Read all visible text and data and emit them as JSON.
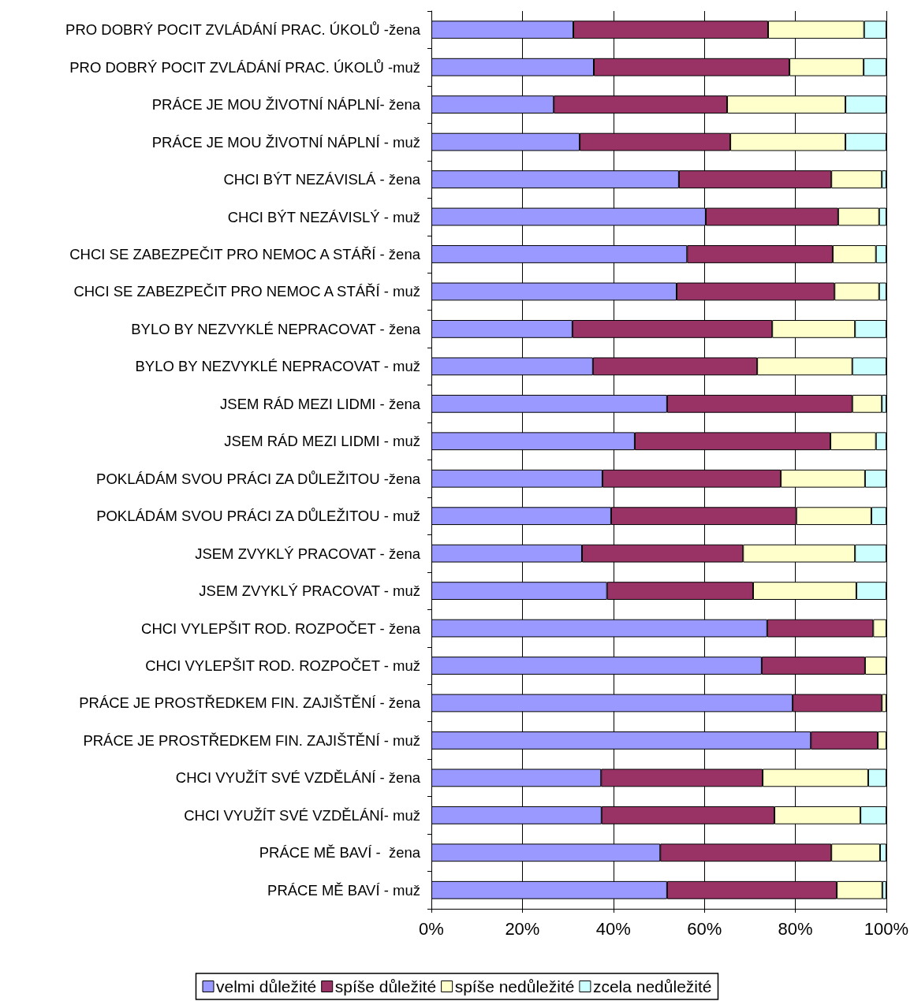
{
  "chart_data": {
    "type": "bar",
    "orientation": "horizontal",
    "stacked": true,
    "categories": [
      "PRO DOBRÝ POCIT ZVLÁDÁNÍ PRAC. ÚKOLŮ -žena",
      "PRO DOBRÝ POCIT ZVLÁDÁNÍ PRAC. ÚKOLŮ -muž",
      "PRÁCE JE MOU ŽIVOTNÍ NÁPLNÍ- žena",
      "PRÁCE JE MOU ŽIVOTNÍ NÁPLNÍ - muž",
      "CHCI BÝT NEZÁVISLÁ - žena",
      "CHCI BÝT NEZÁVISLÝ - muž",
      "CHCI SE ZABEZPEČIT PRO NEMOC A STÁŘÍ - žena",
      "CHCI SE ZABEZPEČIT PRO NEMOC A STÁŘÍ - muž",
      "BYLO BY NEZVYKLÉ NEPRACOVAT - žena",
      "BYLO BY NEZVYKLÉ NEPRACOVAT - muž",
      "JSEM RÁD MEZI LIDMI - žena",
      "JSEM RÁD MEZI LIDMI - muž",
      "POKLÁDÁM SVOU PRÁCI ZA DŮLEŽITOU -žena",
      "POKLÁDÁM SVOU PRÁCI ZA DŮLEŽITOU - muž",
      "JSEM ZVYKLÝ PRACOVAT - žena",
      "JSEM ZVYKLÝ PRACOVAT - muž",
      "CHCI VYLEPŠIT ROD. ROZPOČET - žena",
      "CHCI VYLEPŠIT ROD. ROZPOČET - muž",
      "PRÁCE JE PROSTŘEDKEM FIN. ZAJIŠTĚNÍ - žena",
      "PRÁCE JE PROSTŘEDKEM FIN. ZAJIŠTĚNÍ - muž",
      "CHCI VYUŽÍT SVÉ VZDĚLÁNÍ - žena",
      "CHCI VYUŽÍT SVÉ VZDĚLÁNÍ- muž",
      "PRÁCE MĚ BAVÍ -  žena",
      "PRÁCE MĚ BAVÍ - muž"
    ],
    "series": [
      {
        "name": "velmi důležité",
        "color": "#9999ff",
        "values": [
          31.2,
          35.7,
          26.9,
          32.6,
          54.4,
          60.3,
          56.2,
          53.9,
          31.0,
          35.5,
          51.8,
          44.7,
          37.6,
          39.5,
          33.1,
          38.6,
          73.8,
          72.6,
          79.4,
          83.4,
          37.3,
          37.4,
          50.3,
          51.8
        ]
      },
      {
        "name": "spíše důležité",
        "color": "#993366",
        "values": [
          42.8,
          43.0,
          38.1,
          33.1,
          33.5,
          29.1,
          32.0,
          34.7,
          43.9,
          36.1,
          40.7,
          43.0,
          39.2,
          40.7,
          35.4,
          32.1,
          23.3,
          22.7,
          19.6,
          14.7,
          35.5,
          38.0,
          37.6,
          37.3
        ]
      },
      {
        "name": "spíše nedůležité",
        "color": "#ffffcc",
        "values": [
          21.1,
          16.3,
          26.0,
          25.3,
          11.1,
          9.0,
          9.5,
          9.8,
          18.2,
          20.9,
          6.5,
          10.0,
          18.5,
          16.5,
          24.6,
          22.7,
          2.9,
          4.7,
          1.0,
          1.9,
          23.2,
          18.9,
          10.7,
          10.0
        ]
      },
      {
        "name": "zcela nedůležité",
        "color": "#ccffff",
        "values": [
          4.9,
          5.0,
          9.0,
          9.0,
          1.0,
          1.6,
          2.3,
          1.6,
          6.9,
          7.5,
          1.0,
          2.3,
          4.7,
          3.3,
          6.9,
          6.6,
          0,
          0,
          0,
          0,
          4.0,
          5.7,
          1.4,
          0.9
        ]
      }
    ],
    "xlim": [
      0,
      100
    ],
    "xticks": [
      {
        "value": 0,
        "label": "0%"
      },
      {
        "value": 20,
        "label": "20%"
      },
      {
        "value": 40,
        "label": "40%"
      },
      {
        "value": 60,
        "label": "60%"
      },
      {
        "value": 80,
        "label": "80%"
      },
      {
        "value": 100,
        "label": "100%"
      }
    ],
    "grid": "x",
    "legend": "bottom"
  }
}
